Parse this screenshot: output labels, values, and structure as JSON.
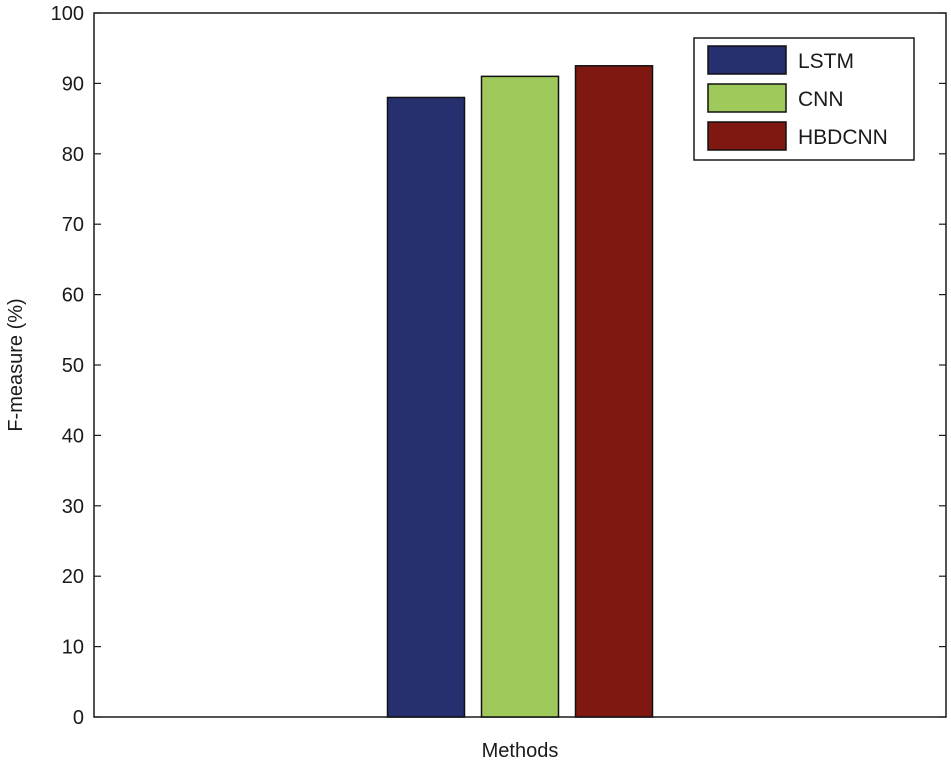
{
  "chart_data": {
    "type": "bar",
    "categories": [
      ""
    ],
    "series": [
      {
        "name": "LSTM",
        "values": [
          88
        ],
        "color": "#27306f"
      },
      {
        "name": "CNN",
        "values": [
          91
        ],
        "color": "#a0c95c"
      },
      {
        "name": "HBDCNN",
        "values": [
          92.5
        ],
        "color": "#7e1810"
      }
    ],
    "xlabel": "Methods",
    "ylabel": "F-measure (%)",
    "ylim": [
      0,
      100
    ],
    "yticks": [
      "0",
      "10",
      "20",
      "30",
      "40",
      "50",
      "60",
      "70",
      "80",
      "90",
      "100"
    ],
    "legend": {
      "position": "top-right"
    },
    "grid": false
  }
}
